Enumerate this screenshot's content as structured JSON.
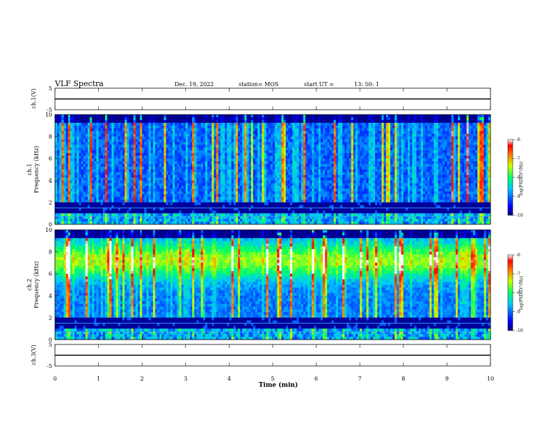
{
  "header": {
    "title": "VLF Spectra",
    "date": "Dec. 19, 2022",
    "station": "station= MOS",
    "start_label": "start  UT  =",
    "start_time": "13: 50: 1"
  },
  "chart_data": {
    "type": "heatmap",
    "x_axis": {
      "label": "Time  (min)",
      "range": [
        0,
        10
      ],
      "ticks": [
        "0",
        "1",
        "2",
        "3",
        "4",
        "5",
        "6",
        "7",
        "8",
        "9",
        "10"
      ]
    },
    "panels": [
      {
        "id": "ch1-waveform",
        "ylabel": "ch.1(V)",
        "ylim": [
          -5,
          5
        ],
        "ticks": [
          "5",
          "-5"
        ],
        "trace_value": 0
      },
      {
        "id": "ch1-spectrogram",
        "ylabel_top": "ch.1",
        "ylabel": "Frequency (kHz)",
        "ylim": [
          0,
          10
        ],
        "ticks": [
          "0",
          "2",
          "4",
          "6",
          "8",
          "10"
        ],
        "colorbar": {
          "label": "log(PSD)(V²/Hz)",
          "range": [
            -10,
            -6
          ],
          "ticks": [
            "-6",
            "-7",
            "-8",
            "-9",
            "-10"
          ]
        }
      },
      {
        "id": "ch2-spectrogram",
        "ylabel_top": "ch.2",
        "ylabel": "Frequency (kHz)",
        "ylim": [
          0,
          10
        ],
        "ticks": [
          "0",
          "2",
          "4",
          "6",
          "8",
          "10"
        ],
        "colorbar": {
          "label": "log(PSD)(V²/Hz)",
          "range": [
            -10,
            -6
          ],
          "ticks": [
            "-6",
            "-7",
            "-8",
            "-9",
            "-10"
          ]
        }
      },
      {
        "id": "ch3-waveform",
        "ylabel": "ch.3(V)",
        "ylim": [
          -5,
          5
        ],
        "ticks": [
          "5",
          "-5"
        ],
        "trace_value": 0
      }
    ]
  }
}
